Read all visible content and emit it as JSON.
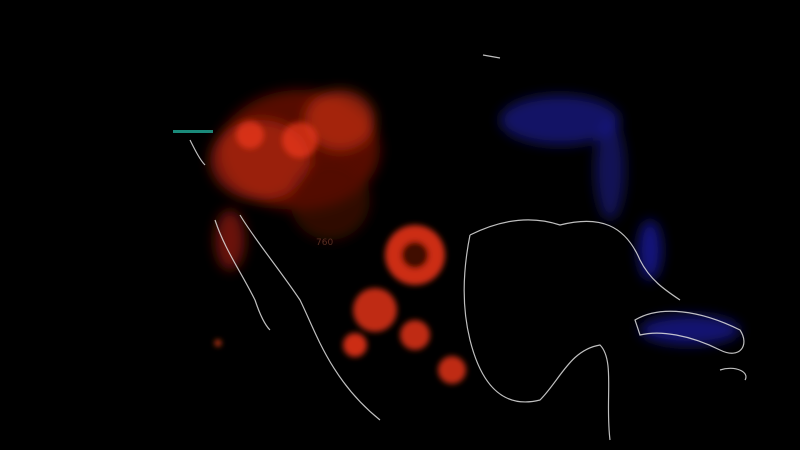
{
  "map": {
    "label": "760",
    "colors": {
      "background": "#000000",
      "warm": "#ff3a1a",
      "cold": "#2a2aff",
      "coast": "#e0e0e0",
      "marker": "#1a8a7a"
    }
  }
}
